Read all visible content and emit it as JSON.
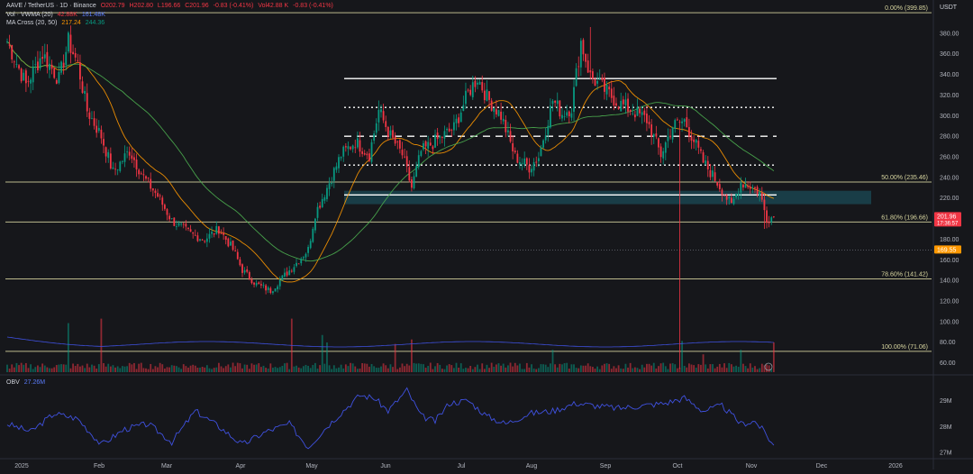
{
  "header": {
    "symbol": "AAVE / TetherUS · 1D · Binance",
    "open": "O202.79",
    "high": "H202.80",
    "low": "L196.66",
    "close": "C201.96",
    "change": "-0.83 (-0.41%)",
    "vol": "Vol42.88 K",
    "vol_change": "-0.83 (-0.41%)",
    "vol_line": "Vol · VWMA (20)",
    "vol_values": [
      "42.88K",
      "161.48K"
    ],
    "ma_label": "MA Cross (20, 50)",
    "ma_values": [
      "217.24",
      "244.36"
    ],
    "currency": "USDT"
  },
  "obv": {
    "label": "OBV",
    "value": "27.26M",
    "ticks": [
      "29M",
      "28M",
      "27M"
    ]
  },
  "colors": {
    "bg": "#16171b",
    "up": "#089981",
    "down": "#f23645",
    "ma_fast": "#ff9800",
    "ma_slow": "#4caf50",
    "obv": "#3f51e0",
    "fib": "#d8d6a0",
    "zone": "#1e5d6b",
    "level": "#ffffff"
  },
  "chart_data": {
    "type": "candlestick",
    "y_axis": {
      "range": [
        50,
        400
      ],
      "ticks": [
        380,
        360,
        340,
        320,
        300,
        280,
        260,
        240,
        220,
        200,
        180,
        160,
        140,
        120,
        100,
        80,
        60
      ]
    },
    "x_axis": {
      "labels": [
        "2025",
        "Feb",
        "Mar",
        "Apr",
        "May",
        "Jun",
        "Jul",
        "Aug",
        "Sep",
        "Oct",
        "Nov",
        "Dec",
        "2026"
      ]
    },
    "fib_levels": [
      {
        "label": "0.00% (399.85)",
        "price": 399.85
      },
      {
        "label": "50.00% (235.46)",
        "price": 235.46
      },
      {
        "label": "61.80% (196.66)",
        "price": 196.66
      },
      {
        "label": "78.60% (141.42)",
        "price": 141.42
      },
      {
        "label": "100.00% (71.06)",
        "price": 71.06
      }
    ],
    "price_tags": [
      {
        "text": "201.96",
        "sub": "17:36:57",
        "price": 201.96,
        "color": "#f23645"
      },
      {
        "text": "169.55",
        "price": 169.55,
        "color": "#ff9800"
      }
    ],
    "levels": [
      {
        "price": 336,
        "style": "solid"
      },
      {
        "price": 308,
        "style": "dotted"
      },
      {
        "price": 280,
        "style": "dashed"
      },
      {
        "price": 252,
        "style": "dotted"
      },
      {
        "price": 223,
        "style": "solid"
      }
    ],
    "zone": {
      "top": 227,
      "bottom": 214
    },
    "last_dashed_level": 169.55,
    "price_keypoints": [
      [
        0,
        372
      ],
      [
        8,
        330
      ],
      [
        15,
        360
      ],
      [
        22,
        335
      ],
      [
        26,
        372
      ],
      [
        30,
        350
      ],
      [
        34,
        305
      ],
      [
        40,
        280
      ],
      [
        45,
        245
      ],
      [
        52,
        266
      ],
      [
        58,
        240
      ],
      [
        64,
        222
      ],
      [
        70,
        198
      ],
      [
        78,
        185
      ],
      [
        84,
        180
      ],
      [
        90,
        190
      ],
      [
        96,
        170
      ],
      [
        100,
        150
      ],
      [
        106,
        136
      ],
      [
        112,
        130
      ],
      [
        118,
        145
      ],
      [
        123,
        157
      ],
      [
        128,
        170
      ],
      [
        131,
        205
      ],
      [
        136,
        230
      ],
      [
        142,
        262
      ],
      [
        148,
        275
      ],
      [
        154,
        262
      ],
      [
        158,
        305
      ],
      [
        163,
        280
      ],
      [
        168,
        262
      ],
      [
        172,
        230
      ],
      [
        176,
        265
      ],
      [
        182,
        275
      ],
      [
        190,
        288
      ],
      [
        196,
        322
      ],
      [
        200,
        337
      ],
      [
        204,
        318
      ],
      [
        210,
        300
      ],
      [
        216,
        260
      ],
      [
        222,
        250
      ],
      [
        226,
        260
      ],
      [
        232,
        315
      ],
      [
        236,
        302
      ],
      [
        240,
        308
      ],
      [
        244,
        372
      ],
      [
        248,
        338
      ],
      [
        254,
        325
      ],
      [
        260,
        312
      ],
      [
        266,
        305
      ],
      [
        272,
        296
      ],
      [
        278,
        262
      ],
      [
        283,
        290
      ],
      [
        288,
        295
      ],
      [
        292,
        276
      ],
      [
        296,
        255
      ],
      [
        300,
        242
      ],
      [
        304,
        228
      ],
      [
        308,
        212
      ],
      [
        312,
        235
      ],
      [
        316,
        232
      ],
      [
        320,
        225
      ],
      [
        323,
        200
      ],
      [
        326,
        202
      ]
    ],
    "spikes": [
      {
        "i": 248,
        "high": 386
      },
      {
        "i": 286,
        "low": 54
      },
      {
        "i": 322,
        "low": 190
      }
    ],
    "volume_spikes": [
      {
        "i": 26,
        "value": 165
      },
      {
        "i": 40,
        "value": 180
      },
      {
        "i": 121,
        "value": 180
      },
      {
        "i": 134,
        "value": 125
      },
      {
        "i": 136,
        "value": 100
      },
      {
        "i": 165,
        "value": 95
      },
      {
        "i": 172,
        "value": 110
      },
      {
        "i": 232,
        "value": 75
      },
      {
        "i": 287,
        "value": 105
      },
      {
        "i": 296,
        "value": 60
      },
      {
        "i": 312,
        "value": 75
      },
      {
        "i": 326,
        "value": 100
      }
    ],
    "obv_keypoints": [
      [
        0,
        28.1
      ],
      [
        10,
        27.8
      ],
      [
        20,
        28.5
      ],
      [
        30,
        28.3
      ],
      [
        40,
        27.3
      ],
      [
        50,
        27.9
      ],
      [
        60,
        28.1
      ],
      [
        70,
        27.4
      ],
      [
        80,
        28.6
      ],
      [
        90,
        28.0
      ],
      [
        100,
        27.3
      ],
      [
        110,
        27.8
      ],
      [
        120,
        28.1
      ],
      [
        128,
        27.2
      ],
      [
        136,
        28.0
      ],
      [
        144,
        28.7
      ],
      [
        150,
        29.2
      ],
      [
        156,
        29.1
      ],
      [
        162,
        28.6
      ],
      [
        170,
        29.4
      ],
      [
        176,
        28.4
      ],
      [
        182,
        28.2
      ],
      [
        188,
        28.9
      ],
      [
        196,
        29.0
      ],
      [
        204,
        28.4
      ],
      [
        212,
        28.1
      ],
      [
        222,
        28.5
      ],
      [
        232,
        28.6
      ],
      [
        242,
        28.9
      ],
      [
        250,
        28.8
      ],
      [
        260,
        28.7
      ],
      [
        270,
        28.8
      ],
      [
        280,
        28.9
      ],
      [
        288,
        29.1
      ],
      [
        296,
        28.6
      ],
      [
        304,
        28.8
      ],
      [
        312,
        28.1
      ],
      [
        318,
        28.2
      ],
      [
        322,
        27.8
      ],
      [
        326,
        27.25
      ]
    ]
  }
}
